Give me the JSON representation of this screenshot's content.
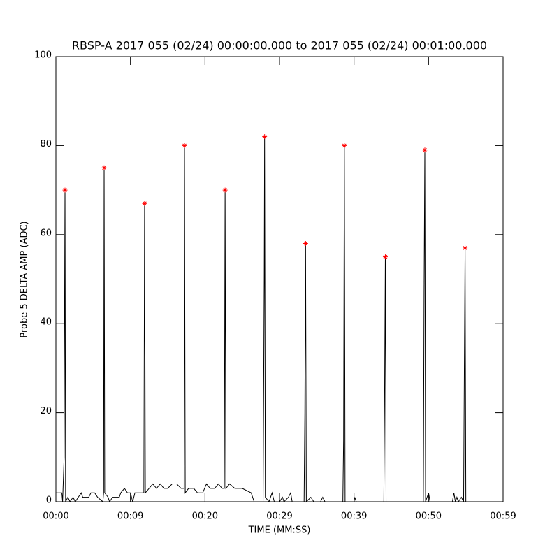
{
  "chart_data": {
    "type": "line",
    "title": "RBSP-A 2017 055 (02/24) 00:00:00.000 to 2017 055 (02/24) 00:01:00.000",
    "xlabel": "TIME (MM:SS)",
    "ylabel": "Probe 5 DELTA AMP (ADC)",
    "xlim": [
      0,
      60
    ],
    "ylim": [
      0,
      100
    ],
    "xticks": [
      {
        "value": 0,
        "label": "00:00"
      },
      {
        "value": 10,
        "label": "00:09"
      },
      {
        "value": 20,
        "label": "00:20"
      },
      {
        "value": 30,
        "label": "00:29"
      },
      {
        "value": 40,
        "label": "00:39"
      },
      {
        "value": 50,
        "label": "00:50"
      },
      {
        "value": 60,
        "label": "00:59"
      }
    ],
    "yticks": [
      0,
      20,
      40,
      60,
      80,
      100
    ],
    "series": [
      {
        "color": "#000000",
        "marker": "none",
        "x": [
          0,
          0.8,
          0.9,
          1.1,
          1.22,
          1.3,
          1.6,
          1.9,
          2.3,
          2.6,
          3.0,
          3.4,
          3.6,
          4.4,
          4.7,
          5.2,
          5.6,
          6.3,
          6.4,
          6.47,
          6.55,
          7.0,
          7.2,
          7.6,
          8.5,
          8.7,
          9.2,
          9.6,
          10.0,
          10.3,
          10.6,
          11.3,
          11.8,
          11.9,
          12.0,
          12.5,
          13.0,
          13.5,
          14.0,
          14.5,
          15.0,
          15.6,
          16.2,
          16.8,
          17.2,
          17.25,
          17.35,
          17.8,
          18.5,
          19.0,
          19.7,
          20.2,
          20.7,
          21.3,
          21.8,
          22.3,
          22.6,
          22.7,
          22.8,
          23.3,
          24.0,
          25.0,
          26.2,
          26.6,
          27.8,
          27.95,
          28.0,
          28.1,
          28.6,
          29.0,
          29.3,
          30.0,
          30.4,
          30.6,
          31.2,
          31.5,
          31.7,
          33.3,
          33.4,
          33.5,
          33.6,
          34.2,
          34.6,
          35.5,
          35.8,
          36.1,
          38.5,
          38.6,
          38.7,
          38.8,
          40.0,
          40.1,
          40.3,
          44.0,
          44.1,
          44.2,
          44.3,
          49.3,
          49.4,
          49.5,
          49.6,
          50.0,
          50.2,
          53.2,
          53.4,
          53.6,
          53.8,
          54.0,
          54.4,
          54.7,
          54.8,
          54.9,
          55.0
        ],
        "values": [
          2,
          2,
          0,
          10,
          70,
          0,
          1,
          0,
          1,
          0,
          1,
          2,
          1,
          1,
          2,
          2,
          1,
          0,
          2,
          75,
          2,
          1,
          0,
          1,
          1,
          2,
          3,
          2,
          2,
          0,
          2,
          2,
          2,
          67,
          2,
          3,
          4,
          3,
          4,
          3,
          3,
          4,
          4,
          3,
          3,
          80,
          2,
          3,
          3,
          2,
          2,
          4,
          3,
          3,
          4,
          3,
          3,
          70,
          3,
          4,
          3,
          3,
          2,
          0,
          0,
          50,
          82,
          1,
          0,
          2,
          0,
          0,
          1,
          0,
          1,
          2,
          0,
          0,
          20,
          58,
          0,
          1,
          0,
          0,
          1,
          0,
          0,
          14,
          80,
          0,
          0,
          1,
          0,
          0,
          22,
          55,
          0,
          0,
          47,
          79,
          0,
          2,
          0,
          0,
          2,
          0,
          1,
          0,
          1,
          0,
          30,
          57,
          0
        ]
      },
      {
        "color": "#ff0000",
        "marker": "asterisk",
        "x": [
          1.22,
          6.47,
          11.9,
          17.25,
          22.7,
          28.0,
          33.5,
          38.7,
          44.2,
          49.5,
          54.9
        ],
        "values": [
          70,
          75,
          67,
          80,
          70,
          82,
          58,
          80,
          55,
          79,
          57
        ]
      }
    ]
  }
}
